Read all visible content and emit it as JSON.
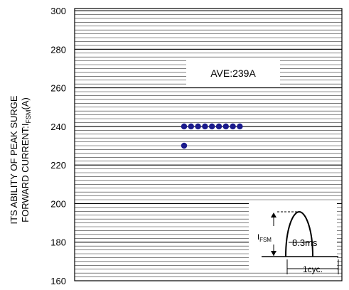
{
  "chart_data": {
    "type": "scatter",
    "ylabel_line1": "ITS ABILITY OF PEAK SURGE",
    "ylabel_line2_prefix": "FORWARD CURRENT:I",
    "ylabel_line2_sub": "FSM",
    "ylabel_line2_suffix": "(A)",
    "ylim": [
      160,
      300
    ],
    "y_ticks": [
      "160",
      "180",
      "200",
      "220",
      "240",
      "260",
      "280",
      "300"
    ],
    "grid": true,
    "annotation": "AVE:239A",
    "x": [
      1,
      1,
      2,
      3,
      4,
      5,
      6,
      7,
      8,
      9
    ],
    "y": [
      230,
      240,
      240,
      240,
      240,
      240,
      240,
      240,
      240,
      240
    ],
    "point_color": "#1a1a8c",
    "inset": {
      "ifsm_prefix": "I",
      "ifsm_sub": "FSM",
      "duration": "8.3ms",
      "cycle": "1cyc."
    }
  }
}
